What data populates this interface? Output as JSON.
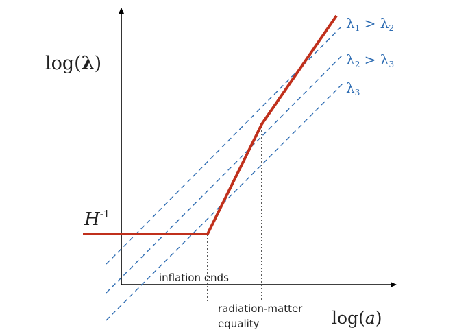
{
  "axes": {
    "y_label": {
      "main": "log(",
      "sym": "λ",
      "close": ")"
    },
    "x_label": {
      "main": "log(",
      "sym": "a",
      "close": ")"
    }
  },
  "labels": {
    "hubble": {
      "main": "H",
      "sup": "-1"
    },
    "inflation_ends": "inflation ends",
    "rad_matter_1": "radiation-matter",
    "rad_matter_2": "equality"
  },
  "modes": [
    {
      "main": "λ",
      "sub": "1",
      "rest": " > λ",
      "sub2": "2"
    },
    {
      "main": "λ",
      "sub": "2",
      "rest": " > λ",
      "sub2": "3"
    },
    {
      "main": "λ",
      "sub": "3",
      "rest": "",
      "sub2": ""
    }
  ],
  "colors": {
    "horizon": "#c0301c",
    "modes": "#2f6db3",
    "axis": "#000000"
  }
}
